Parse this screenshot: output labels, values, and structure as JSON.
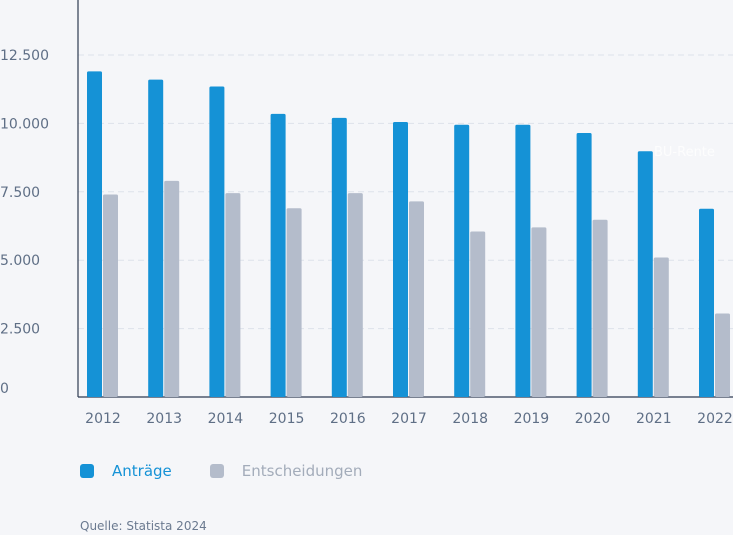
{
  "chart_data": {
    "type": "bar",
    "categories": [
      "2012",
      "2013",
      "2014",
      "2015",
      "2016",
      "2017",
      "2018",
      "2019",
      "2020",
      "2021",
      "2022"
    ],
    "series": [
      {
        "name": "Anträge",
        "color": "#1592d6",
        "values": [
          11900,
          11600,
          11350,
          10350,
          10200,
          10050,
          9950,
          9950,
          9650,
          8980,
          6880
        ]
      },
      {
        "name": "Entscheidungen",
        "color": "#b4bccb",
        "values": [
          7400,
          7900,
          7450,
          6900,
          7450,
          7150,
          6050,
          6200,
          6480,
          5100,
          3050
        ]
      }
    ],
    "y_ticks": [
      "0",
      "2.500",
      "5.000",
      "7.500",
      "10.000",
      "12.500"
    ],
    "ylim": [
      0,
      14000
    ],
    "grid": true,
    "legend_position": "bottom-left"
  },
  "legend": {
    "items": [
      {
        "label": "Anträge",
        "color": "#1592d6",
        "text_color": "#1592d6"
      },
      {
        "label": "Entscheidungen",
        "color": "#b4bccb",
        "text_color": "#a3acba"
      }
    ]
  },
  "watermark": "BU-Rente",
  "source": "Quelle: Statista 2024"
}
